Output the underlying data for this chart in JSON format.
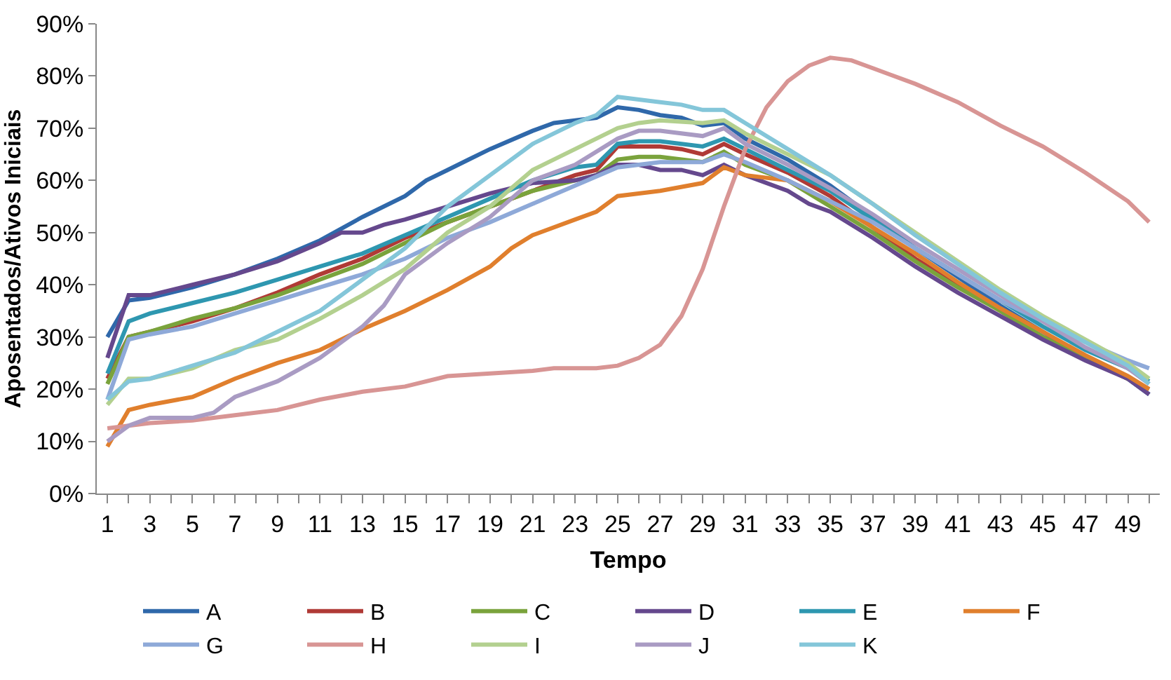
{
  "chart_data": {
    "type": "line",
    "xlabel": "Tempo",
    "ylabel": "Aposentados/Ativos Iniciais",
    "xlim": [
      0.5,
      50.5
    ],
    "xticks": [
      1,
      {
        "value": 2,
        "label": null
      },
      3,
      {
        "value": 4,
        "label": null
      },
      5,
      {
        "value": 6,
        "label": null
      },
      7,
      {
        "value": 8,
        "label": null
      },
      9,
      {
        "value": 10,
        "label": null
      },
      11,
      {
        "value": 12,
        "label": null
      },
      13,
      {
        "value": 14,
        "label": null
      },
      15,
      {
        "value": 16,
        "label": null
      },
      17,
      {
        "value": 18,
        "label": null
      },
      19,
      {
        "value": 20,
        "label": null
      },
      21,
      {
        "value": 22,
        "label": null
      },
      23,
      {
        "value": 24,
        "label": null
      },
      25,
      {
        "value": 26,
        "label": null
      },
      27,
      {
        "value": 28,
        "label": null
      },
      29,
      {
        "value": 30,
        "label": null
      },
      31,
      {
        "value": 32,
        "label": null
      },
      33,
      {
        "value": 34,
        "label": null
      },
      35,
      {
        "value": 36,
        "label": null
      },
      37,
      {
        "value": 38,
        "label": null
      },
      39,
      {
        "value": 40,
        "label": null
      },
      41,
      {
        "value": 42,
        "label": null
      },
      43,
      {
        "value": 44,
        "label": null
      },
      45,
      {
        "value": 46,
        "label": null
      },
      47,
      {
        "value": 48,
        "label": null
      },
      49,
      {
        "value": 50,
        "label": null
      }
    ],
    "ylim": [
      0,
      90
    ],
    "yticks": [
      {
        "value": 0,
        "label": "0%"
      },
      {
        "value": 10,
        "label": "10%"
      },
      {
        "value": 20,
        "label": "20%"
      },
      {
        "value": 30,
        "label": "30%"
      },
      {
        "value": 40,
        "label": "40%"
      },
      {
        "value": 50,
        "label": "50%"
      },
      {
        "value": 60,
        "label": "60%"
      },
      {
        "value": 70,
        "label": "70%"
      },
      {
        "value": 80,
        "label": "80%"
      },
      {
        "value": 90,
        "label": "90%"
      }
    ],
    "grid": false,
    "legend": "bottom",
    "marker": "none",
    "line_style": "solid",
    "series": [
      {
        "name": "A",
        "color": "#2f68aa",
        "x": [
          1,
          2,
          3,
          5,
          7,
          9,
          11,
          13,
          15,
          16,
          17,
          18,
          19,
          21,
          22,
          23,
          24,
          25,
          26,
          27,
          28,
          29,
          30,
          31,
          33,
          35,
          37,
          39,
          41,
          43,
          45,
          47,
          49,
          50
        ],
        "values": [
          30,
          37,
          37.5,
          39.5,
          42,
          45,
          48.5,
          53,
          57,
          60,
          62,
          64,
          66,
          69.5,
          71,
          71.5,
          72,
          74,
          73.5,
          72.5,
          72,
          70.5,
          71,
          68,
          64,
          59,
          53,
          47,
          41.5,
          36,
          31,
          26,
          22,
          19
        ]
      },
      {
        "name": "B",
        "color": "#b03a36",
        "x": [
          1,
          2,
          3,
          5,
          7,
          9,
          11,
          13,
          15,
          17,
          19,
          21,
          23,
          24,
          25,
          26,
          27,
          28,
          29,
          30,
          31,
          33,
          35,
          37,
          39,
          41,
          43,
          45,
          47,
          49,
          50
        ],
        "values": [
          22,
          30,
          31,
          33,
          35.5,
          38.5,
          42,
          45,
          49,
          52,
          55,
          58,
          61,
          62,
          66.5,
          66.5,
          66.5,
          66,
          65,
          67,
          65,
          61.5,
          57,
          51,
          45,
          40,
          35,
          30,
          26,
          22,
          20
        ]
      },
      {
        "name": "C",
        "color": "#7aa33c",
        "x": [
          1,
          2,
          3,
          5,
          7,
          9,
          11,
          13,
          15,
          17,
          19,
          21,
          23,
          24,
          25,
          26,
          27,
          28,
          29,
          30,
          31,
          33,
          35,
          37,
          39,
          41,
          43,
          45,
          47,
          49,
          50
        ],
        "values": [
          21,
          30,
          31,
          33.5,
          35.5,
          38,
          41,
          44,
          48,
          52,
          55,
          58,
          60,
          61,
          64,
          64.5,
          64.5,
          64,
          63.5,
          65.5,
          63,
          60,
          55,
          50,
          44.5,
          39.5,
          35,
          30,
          26,
          22,
          20
        ]
      },
      {
        "name": "D",
        "color": "#65488d",
        "x": [
          1,
          2,
          3,
          5,
          7,
          9,
          11,
          12,
          13,
          14,
          15,
          17,
          19,
          21,
          23,
          24,
          25,
          26,
          27,
          28,
          29,
          30,
          31,
          33,
          34,
          35,
          37,
          39,
          41,
          43,
          45,
          47,
          49,
          50
        ],
        "values": [
          26,
          38,
          38,
          40,
          42,
          44.5,
          48,
          50,
          50,
          51.5,
          52.5,
          55,
          57.5,
          59.5,
          60,
          61,
          63,
          63,
          62,
          62,
          61,
          63,
          61,
          58,
          55.5,
          54,
          49,
          43.5,
          38.5,
          34,
          29.5,
          25.5,
          22,
          19
        ]
      },
      {
        "name": "E",
        "color": "#2e97b0",
        "x": [
          1,
          2,
          3,
          5,
          7,
          9,
          11,
          13,
          15,
          17,
          19,
          21,
          23,
          24,
          25,
          26,
          27,
          28,
          29,
          30,
          31,
          33,
          35,
          37,
          39,
          41,
          43,
          45,
          47,
          49,
          50
        ],
        "values": [
          23,
          33,
          34.5,
          36.5,
          38.5,
          41,
          43.5,
          46,
          49.5,
          53,
          56.5,
          60,
          62.5,
          63,
          67,
          67.5,
          67.5,
          67,
          66.5,
          68,
          66,
          62,
          58,
          52.5,
          47,
          42,
          37,
          32,
          27.5,
          24,
          21.5
        ]
      },
      {
        "name": "F",
        "color": "#e07f2d",
        "x": [
          1,
          2,
          3,
          5,
          7,
          9,
          11,
          13,
          15,
          17,
          19,
          20,
          21,
          23,
          24,
          25,
          27,
          29,
          30,
          31,
          33,
          35,
          37,
          39,
          41,
          43,
          45,
          47,
          49,
          50
        ],
        "values": [
          9,
          16,
          17,
          18.5,
          22,
          25,
          27.5,
          31.5,
          35,
          39,
          43.5,
          47,
          49.5,
          52.5,
          54,
          57,
          58,
          59.5,
          62.5,
          61,
          60,
          56,
          51,
          46,
          40.5,
          35.5,
          31,
          26.5,
          22.5,
          20
        ]
      },
      {
        "name": "G",
        "color": "#8ea9d8",
        "x": [
          1,
          2,
          3,
          5,
          7,
          9,
          11,
          13,
          15,
          17,
          19,
          21,
          23,
          25,
          27,
          29,
          30,
          31,
          33,
          35,
          37,
          39,
          41,
          43,
          45,
          47,
          49,
          50
        ],
        "values": [
          18,
          29.5,
          30.5,
          32,
          34.5,
          37,
          39.5,
          42,
          45,
          49,
          52,
          55.5,
          59,
          62.5,
          63.5,
          63.5,
          65,
          63.5,
          60,
          56,
          52,
          47,
          42,
          37,
          33,
          29,
          25.5,
          24
        ]
      },
      {
        "name": "H",
        "color": "#d89594",
        "x": [
          1,
          2,
          3,
          5,
          7,
          9,
          11,
          13,
          15,
          17,
          19,
          21,
          22,
          23,
          24,
          25,
          26,
          27,
          28,
          29,
          30,
          31,
          32,
          33,
          34,
          35,
          36,
          37,
          39,
          41,
          43,
          45,
          47,
          49,
          50
        ],
        "values": [
          12.5,
          13,
          13.5,
          14,
          15,
          16,
          18,
          19.5,
          20.5,
          22.5,
          23,
          23.5,
          24,
          24,
          24,
          24.5,
          26,
          28.5,
          34,
          43,
          55,
          66,
          74,
          79,
          82,
          83.5,
          83,
          81.5,
          78.5,
          75,
          70.5,
          66.5,
          61.5,
          56,
          52
        ]
      },
      {
        "name": "I",
        "color": "#b3d08f",
        "x": [
          1,
          2,
          3,
          5,
          7,
          9,
          11,
          13,
          15,
          17,
          19,
          21,
          23,
          25,
          26,
          27,
          29,
          30,
          31,
          33,
          35,
          37,
          39,
          41,
          43,
          45,
          47,
          49,
          50
        ],
        "values": [
          17,
          22,
          22,
          24,
          27.5,
          29.5,
          33.5,
          38,
          43,
          50,
          55,
          62,
          66,
          70,
          71,
          71.5,
          71,
          71.5,
          69,
          65,
          61,
          55.5,
          50,
          44.5,
          39,
          34,
          29.5,
          25,
          22
        ]
      },
      {
        "name": "J",
        "color": "#a99bc3",
        "x": [
          1,
          2,
          3,
          5,
          6,
          7,
          9,
          11,
          13,
          14,
          15,
          17,
          19,
          21,
          23,
          25,
          26,
          27,
          29,
          30,
          31,
          33,
          35,
          37,
          39,
          41,
          43,
          45,
          47,
          49,
          50
        ],
        "values": [
          10,
          13,
          14.5,
          14.5,
          15.5,
          18.5,
          21.5,
          26,
          32,
          36,
          42,
          48,
          53,
          60,
          63,
          68,
          69.5,
          69.5,
          68.5,
          70,
          67,
          63,
          58.5,
          53.5,
          48,
          43,
          38,
          33,
          28,
          24,
          21
        ]
      },
      {
        "name": "K",
        "color": "#84c6d9",
        "x": [
          1,
          2,
          3,
          5,
          7,
          9,
          11,
          13,
          15,
          17,
          19,
          21,
          23,
          24,
          25,
          26,
          27,
          28,
          29,
          30,
          31,
          33,
          35,
          37,
          39,
          41,
          43,
          45,
          47,
          49,
          50
        ],
        "values": [
          18,
          21.5,
          22,
          24.5,
          27,
          31,
          35,
          41,
          47,
          55,
          61,
          67,
          71,
          72.5,
          76,
          75.5,
          75,
          74.5,
          73.5,
          73.5,
          71,
          66,
          61,
          55.5,
          49.5,
          44,
          38.5,
          33.5,
          29,
          24.5,
          21
        ]
      }
    ]
  }
}
